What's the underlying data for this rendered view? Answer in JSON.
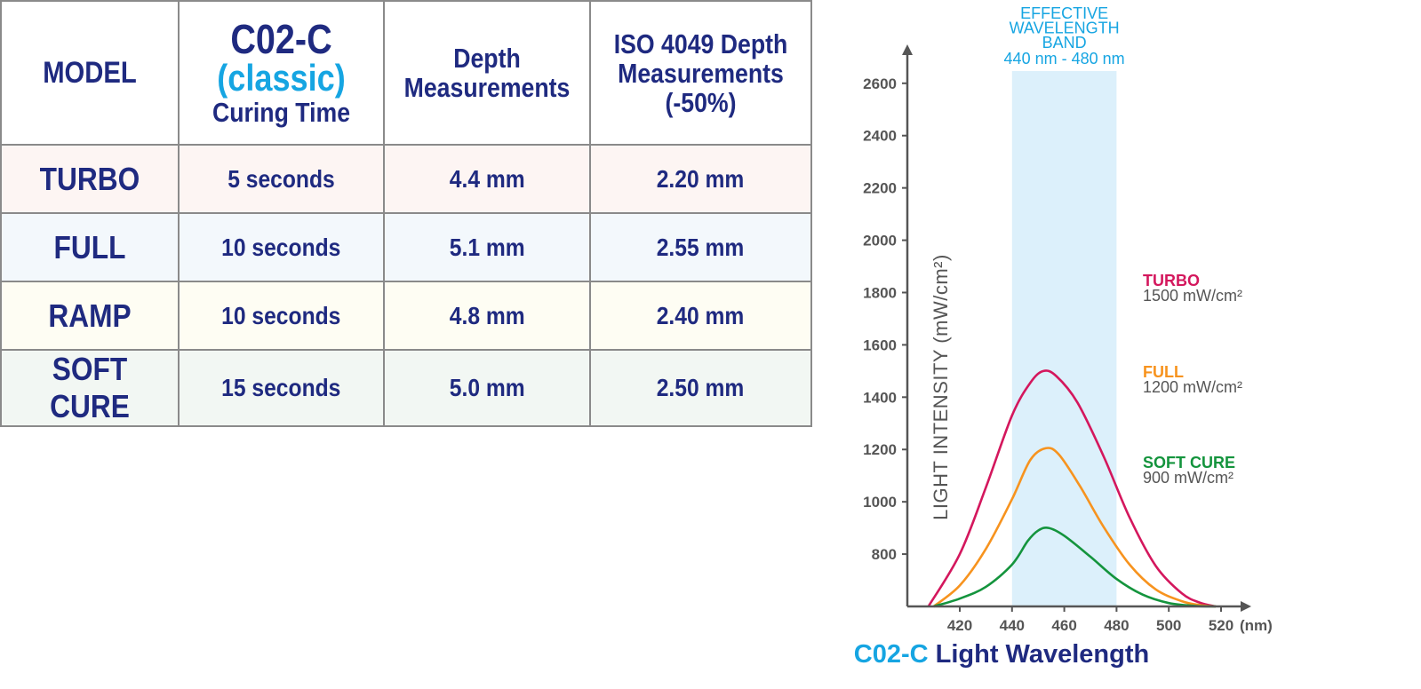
{
  "table": {
    "headers": {
      "model": "MODEL",
      "curing_line1": "C02-C",
      "curing_line2": "(classic)",
      "curing_line3": "Curing Time",
      "depth_line1": "Depth",
      "depth_line2": "Measurements",
      "iso_line1": "ISO 4049 Depth",
      "iso_line2": "Measurements",
      "iso_line3": "(-50%)"
    },
    "rows": [
      {
        "model": "TURBO",
        "time": "5 seconds",
        "depth": "4.4 mm",
        "iso": "2.20 mm",
        "bg": "#fdf5f3"
      },
      {
        "model": "FULL",
        "time": "10 seconds",
        "depth": "5.1 mm",
        "iso": "2.55 mm",
        "bg": "#f3f8fc"
      },
      {
        "model": "RAMP",
        "time": "10 seconds",
        "depth": "4.8 mm",
        "iso": "2.40 mm",
        "bg": "#fefdf3"
      },
      {
        "model": "SOFT CURE",
        "time": "15 seconds",
        "depth": "5.0 mm",
        "iso": "2.50 mm",
        "bg": "#f2f7f3"
      }
    ],
    "colors": {
      "text": "#1f2a80",
      "accent": "#16a5e2",
      "border": "#8a8a8a"
    }
  },
  "chart_data": {
    "type": "line",
    "title_part1": "C02-C",
    "title_part2": "Light Wavelength",
    "xlabel_unit": "(nm)",
    "ylabel": "LIGHT INTENSITY (mW/cm²)",
    "xlim": [
      400,
      528
    ],
    "ylim": [
      600,
      2700
    ],
    "x_ticks": [
      420,
      440,
      460,
      480,
      500,
      520
    ],
    "y_ticks": [
      800,
      1000,
      1200,
      1400,
      1600,
      1800,
      2000,
      2200,
      2400,
      2600
    ],
    "band": {
      "range": [
        440,
        480
      ],
      "title_lines": [
        "EFFECTIVE",
        "WAVELENGTH",
        "BAND"
      ],
      "range_label": "440 nm - 480 nm",
      "color": "#dcf0fb"
    },
    "series": [
      {
        "name": "TURBO",
        "value_label": "1500 mW/cm²",
        "color": "#d4175d",
        "x": [
          408,
          420,
          430,
          440,
          447,
          452,
          457,
          465,
          475,
          485,
          495,
          505,
          512,
          518
        ],
        "y": [
          600,
          800,
          1055,
          1330,
          1455,
          1500,
          1480,
          1380,
          1175,
          940,
          755,
          650,
          614,
          600
        ]
      },
      {
        "name": "FULL",
        "value_label": "1200 mW/cm²",
        "color": "#f7931e",
        "x": [
          410,
          420,
          430,
          440,
          447,
          453,
          458,
          466,
          475,
          485,
          495,
          505,
          512,
          518
        ],
        "y": [
          600,
          680,
          820,
          1010,
          1160,
          1205,
          1180,
          1060,
          905,
          760,
          665,
          620,
          605,
          600
        ]
      },
      {
        "name": "SOFT CURE",
        "value_label": "900 mW/cm²",
        "color": "#14943d",
        "x": [
          410,
          420,
          430,
          440,
          446,
          450,
          454,
          460,
          470,
          480,
          490,
          500,
          510,
          518
        ],
        "y": [
          600,
          630,
          675,
          760,
          850,
          890,
          900,
          870,
          790,
          705,
          645,
          613,
          602,
          600
        ]
      }
    ],
    "colors": {
      "axis": "#555555",
      "title_dark": "#1f2a80",
      "title_accent": "#16a5e2"
    }
  }
}
